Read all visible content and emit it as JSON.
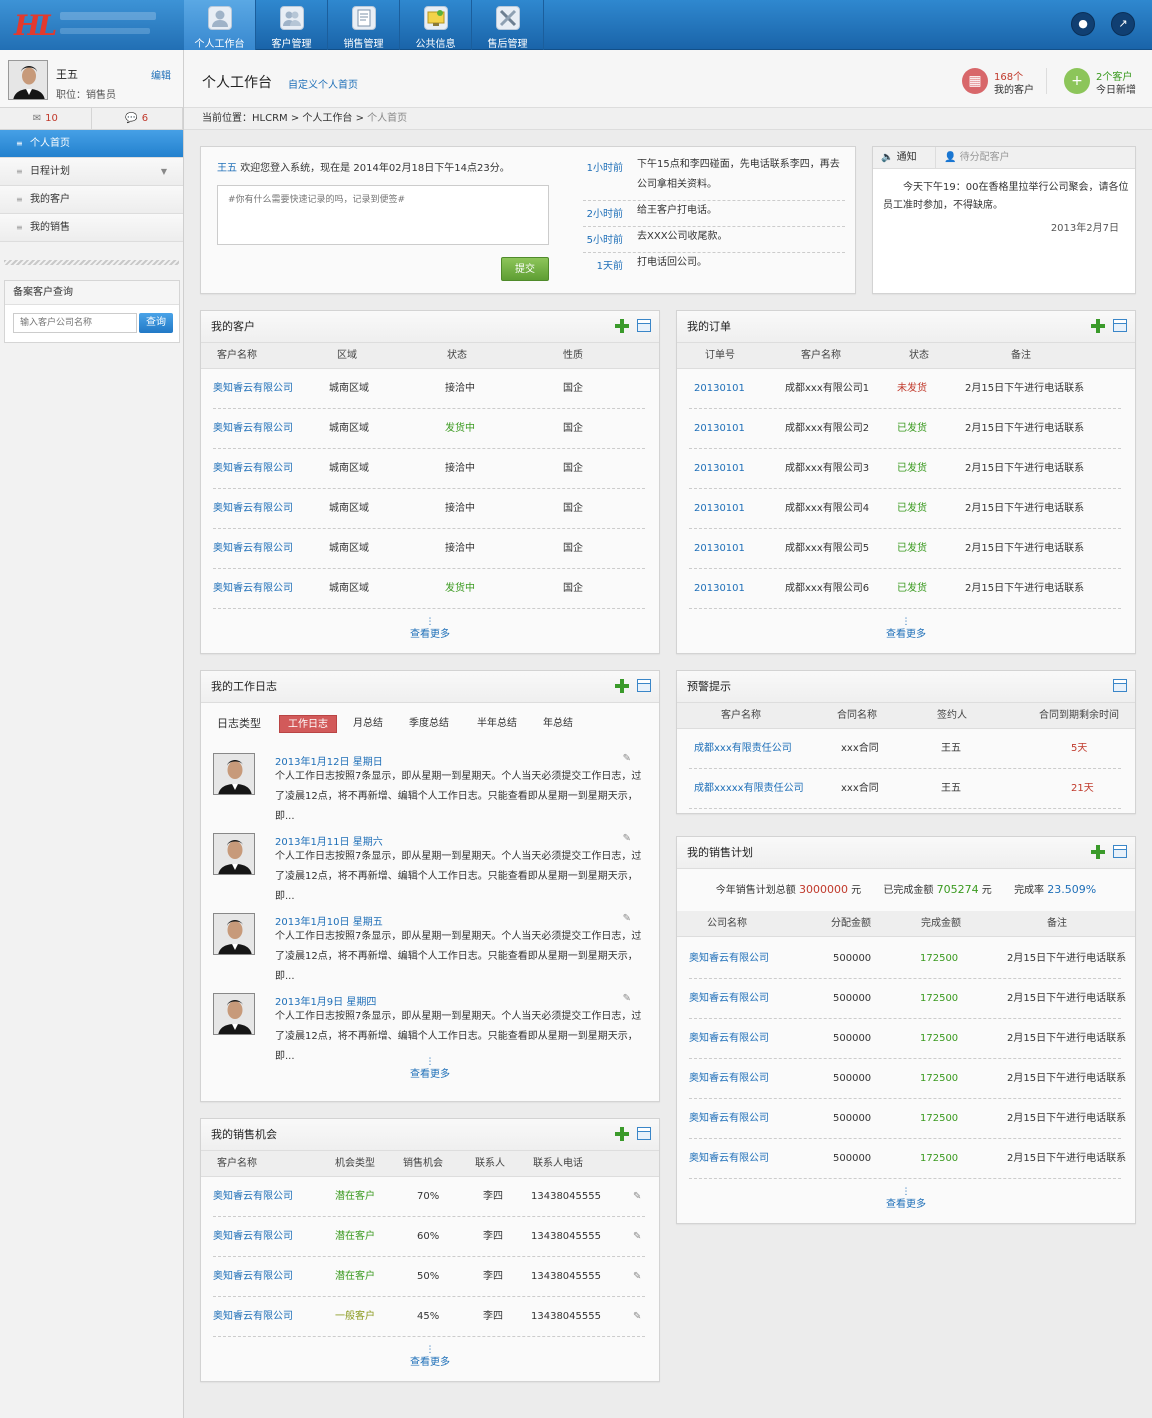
{
  "nav": {
    "items": [
      {
        "label": "个人工作台",
        "icon": "user-icon",
        "active": true
      },
      {
        "label": "客户管理",
        "icon": "customers-icon",
        "active": false
      },
      {
        "label": "销售管理",
        "icon": "document-icon",
        "active": false
      },
      {
        "label": "公共信息",
        "icon": "info-board-icon",
        "active": false
      },
      {
        "label": "售后管理",
        "icon": "tools-icon",
        "active": false
      }
    ],
    "lock_icon": "lock-icon",
    "logout_icon": "logout-icon"
  },
  "logo": {
    "mark": "HL"
  },
  "profile": {
    "name": "王五",
    "title": "职位：销售员",
    "edit": "编辑"
  },
  "counts": {
    "mail": "10",
    "chat": "6"
  },
  "sidebar": {
    "menu": [
      {
        "label": "个人首页",
        "active": true
      },
      {
        "label": "日程计划",
        "active": false,
        "expand": true
      },
      {
        "label": "我的客户",
        "active": false
      },
      {
        "label": "我的销售",
        "active": false
      }
    ],
    "query_title": "备案客户查询",
    "query_placeholder": "输入客户公司名称",
    "query_button": "查询"
  },
  "header": {
    "title": "个人工作台",
    "customize": "自定义个人首页",
    "stat1_value": "168个",
    "stat1_label": "我的客户",
    "stat2_value": "2个客户",
    "stat2_label": "今日新增"
  },
  "breadcrumb": {
    "prefix": "当前位置：HLCRM > 个人工作台 > ",
    "current": "个人首页"
  },
  "welcome": {
    "user": "王五",
    "text": "欢迎您登入系统，现在是 2014年02月18日下午14点23分。",
    "placeholder": "#你有什么需要快速记录的吗，记录到便签#",
    "submit": "提交",
    "timeline": [
      {
        "time": "1小时前",
        "content": "下午15点和李四碰面，先电话联系李四，再去公司拿相关资料。"
      },
      {
        "time": "2小时前",
        "content": "给王客户打电话。"
      },
      {
        "time": "5小时前",
        "content": "去XXX公司收尾款。"
      },
      {
        "time": "1天前",
        "content": "打电话回公司。"
      }
    ]
  },
  "notice": {
    "tab1": "通知",
    "tab2": "待分配客户",
    "text": "今天下午19：00在香格里拉举行公司聚会，请各位员工准时参加，不得缺席。",
    "date": "2013年2月7日"
  },
  "customers": {
    "title": "我的客户",
    "headers": [
      "客户名称",
      "区域",
      "状态",
      "性质"
    ],
    "rows": [
      {
        "name": "奥知睿云有限公司",
        "area": "城南区域",
        "status": "接洽中",
        "status_color": "#333333",
        "type": "国企"
      },
      {
        "name": "奥知睿云有限公司",
        "area": "城南区域",
        "status": "发货中",
        "status_color": "#3a9a1f",
        "type": "国企"
      },
      {
        "name": "奥知睿云有限公司",
        "area": "城南区域",
        "status": "接洽中",
        "status_color": "#333333",
        "type": "国企"
      },
      {
        "name": "奥知睿云有限公司",
        "area": "城南区域",
        "status": "接洽中",
        "status_color": "#333333",
        "type": "国企"
      },
      {
        "name": "奥知睿云有限公司",
        "area": "城南区域",
        "status": "接洽中",
        "status_color": "#333333",
        "type": "国企"
      },
      {
        "name": "奥知睿云有限公司",
        "area": "城南区域",
        "status": "发货中",
        "status_color": "#3a9a1f",
        "type": "国企"
      }
    ],
    "more": "查看更多"
  },
  "orders": {
    "title": "我的订单",
    "headers": [
      "订单号",
      "客户名称",
      "状态",
      "备注"
    ],
    "rows": [
      {
        "no": "20130101",
        "customer": "成都xxx有限公司1",
        "status": "未发货",
        "status_color": "#c0392b",
        "note": "2月15日下午进行电话联系"
      },
      {
        "no": "20130101",
        "customer": "成都xxx有限公司2",
        "status": "已发货",
        "status_color": "#3a9a1f",
        "note": "2月15日下午进行电话联系"
      },
      {
        "no": "20130101",
        "customer": "成都xxx有限公司3",
        "status": "已发货",
        "status_color": "#3a9a1f",
        "note": "2月15日下午进行电话联系"
      },
      {
        "no": "20130101",
        "customer": "成都xxx有限公司4",
        "status": "已发货",
        "status_color": "#3a9a1f",
        "note": "2月15日下午进行电话联系"
      },
      {
        "no": "20130101",
        "customer": "成都xxx有限公司5",
        "status": "已发货",
        "status_color": "#3a9a1f",
        "note": "2月15日下午进行电话联系"
      },
      {
        "no": "20130101",
        "customer": "成都xxx有限公司6",
        "status": "已发货",
        "status_color": "#3a9a1f",
        "note": "2月15日下午进行电话联系"
      }
    ],
    "more": "查看更多"
  },
  "diary": {
    "title": "我的工作日志",
    "tabs_label": "日志类型",
    "tabs": [
      "工作日志",
      "月总结",
      "季度总结",
      "半年总结",
      "年总结"
    ],
    "entries": [
      {
        "date": "2013年1月12日 星期日",
        "text": "个人工作日志按照7条显示，即从星期一到星期天。个人当天必须提交工作日志，过了凌晨12点，将不再新增、编辑个人工作日志。只能查看即从星期一到星期天示，即..."
      },
      {
        "date": "2013年1月11日 星期六",
        "text": "个人工作日志按照7条显示，即从星期一到星期天。个人当天必须提交工作日志，过了凌晨12点，将不再新增、编辑个人工作日志。只能查看即从星期一到星期天示，即..."
      },
      {
        "date": "2013年1月10日 星期五",
        "text": "个人工作日志按照7条显示，即从星期一到星期天。个人当天必须提交工作日志，过了凌晨12点，将不再新增、编辑个人工作日志。只能查看即从星期一到星期天示，即..."
      },
      {
        "date": "2013年1月9日 星期四",
        "text": "个人工作日志按照7条显示，即从星期一到星期天。个人当天必须提交工作日志，过了凌晨12点，将不再新增、编辑个人工作日志。只能查看即从星期一到星期天示，即..."
      }
    ],
    "more": "查看更多"
  },
  "warning": {
    "title": "预警提示",
    "headers": [
      "客户名称",
      "合同名称",
      "签约人",
      "合同到期剩余时间"
    ],
    "rows": [
      {
        "customer": "成都xxx有限责任公司",
        "contract": "xxx合同",
        "signer": "王五",
        "remain": "5天"
      },
      {
        "customer": "成都xxxxx有限责任公司",
        "contract": "xxx合同",
        "signer": "王五",
        "remain": "21天"
      }
    ]
  },
  "plan": {
    "title": "我的销售计划",
    "total_label": "今年销售计划总额",
    "total_value": "3000000",
    "total_unit": "元",
    "done_label": "已完成金额",
    "done_value": "705274",
    "done_unit": "元",
    "rate_label": "完成率",
    "rate_value": "23.509%",
    "headers": [
      "公司名称",
      "分配金额",
      "完成金额",
      "备注"
    ],
    "rows": [
      {
        "company": "奥知睿云有限公司",
        "assigned": "500000",
        "done": "172500",
        "note": "2月15日下午进行电话联系"
      },
      {
        "company": "奥知睿云有限公司",
        "assigned": "500000",
        "done": "172500",
        "note": "2月15日下午进行电话联系"
      },
      {
        "company": "奥知睿云有限公司",
        "assigned": "500000",
        "done": "172500",
        "note": "2月15日下午进行电话联系"
      },
      {
        "company": "奥知睿云有限公司",
        "assigned": "500000",
        "done": "172500",
        "note": "2月15日下午进行电话联系"
      },
      {
        "company": "奥知睿云有限公司",
        "assigned": "500000",
        "done": "172500",
        "note": "2月15日下午进行电话联系"
      },
      {
        "company": "奥知睿云有限公司",
        "assigned": "500000",
        "done": "172500",
        "note": "2月15日下午进行电话联系"
      }
    ],
    "more": "查看更多"
  },
  "opportunity": {
    "title": "我的销售机会",
    "headers": [
      "客户名称",
      "机会类型",
      "销售机会",
      "联系人",
      "联系人电话"
    ],
    "rows": [
      {
        "customer": "奥知睿云有限公司",
        "type": "潜在客户",
        "type_color": "#3a9a1f",
        "chance": "70%",
        "contact": "李四",
        "phone": "13438045555"
      },
      {
        "customer": "奥知睿云有限公司",
        "type": "潜在客户",
        "type_color": "#3a9a1f",
        "chance": "60%",
        "contact": "李四",
        "phone": "13438045555"
      },
      {
        "customer": "奥知睿云有限公司",
        "type": "潜在客户",
        "type_color": "#3a9a1f",
        "chance": "50%",
        "contact": "李四",
        "phone": "13438045555"
      },
      {
        "customer": "奥知睿云有限公司",
        "type": "一般客户",
        "type_color": "#8a9a1f",
        "chance": "45%",
        "contact": "李四",
        "phone": "13438045555"
      }
    ],
    "more": "查看更多"
  }
}
